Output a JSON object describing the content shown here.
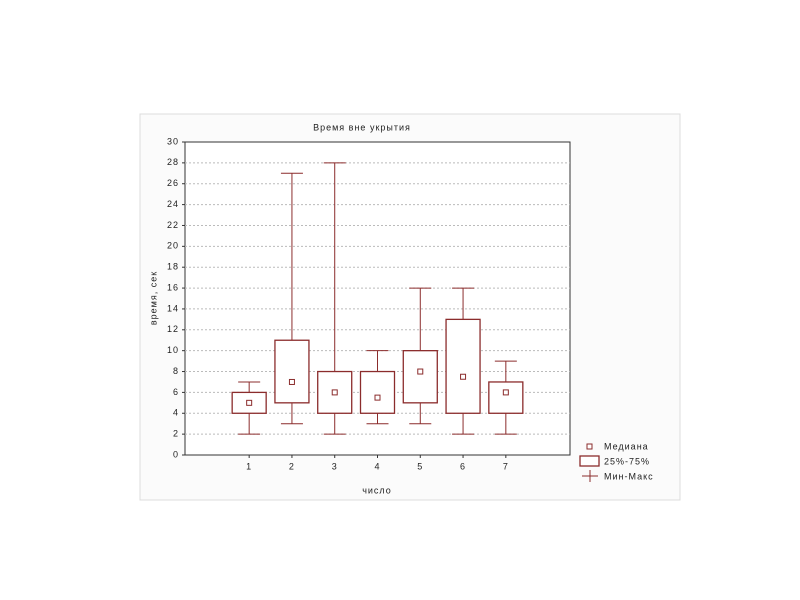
{
  "chart_data": {
    "type": "box",
    "title": "Время вне укрытия",
    "x_label": "число",
    "y_label": "время, сек",
    "x": [
      1,
      2,
      3,
      4,
      5,
      6,
      7
    ],
    "min": [
      2,
      3,
      2,
      3,
      3,
      2,
      2
    ],
    "q1": [
      4,
      5,
      4,
      4,
      5,
      4,
      4
    ],
    "median": [
      5,
      7,
      6,
      5.5,
      8,
      7.5,
      6
    ],
    "q3": [
      6,
      11,
      8,
      8,
      10,
      13,
      7
    ],
    "max": [
      7,
      27,
      28,
      10,
      16,
      16,
      9
    ],
    "xlim": [
      -0.5,
      8.5
    ],
    "xticks": [
      1,
      2,
      3,
      4,
      5,
      6,
      7
    ],
    "ylim": [
      0,
      30
    ],
    "yticks": [
      0,
      2,
      4,
      6,
      8,
      10,
      12,
      14,
      16,
      18,
      20,
      22,
      24,
      26,
      28,
      30
    ],
    "grid": true,
    "color": "#8b2c2c",
    "legend": {
      "median": "Медиана",
      "box": "25%-75%",
      "range": "Мин-Макс"
    }
  }
}
